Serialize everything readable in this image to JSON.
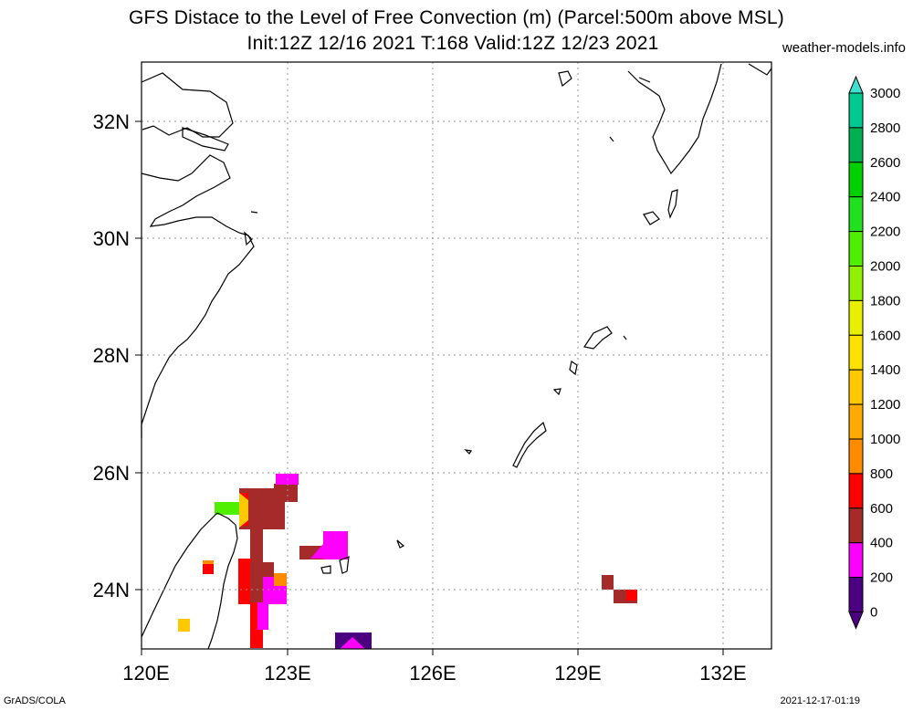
{
  "title_line1": "GFS Distace to the Level of Free Convection (m) (Parcel:500m above MSL)",
  "title_line2": "Init:12Z 12/16 2021 T:168 Valid:12Z 12/23 2021",
  "site": "weather-models.info",
  "footer_left": "GrADS/COLA",
  "footer_right": "2021-12-17-01:19",
  "lat_labels": [
    "32N",
    "30N",
    "28N",
    "26N",
    "24N"
  ],
  "lon_labels": [
    "120E",
    "123E",
    "126E",
    "129E",
    "132E"
  ],
  "colorbar": {
    "labels": [
      "3000",
      "2800",
      "2600",
      "2400",
      "2200",
      "2000",
      "1800",
      "1600",
      "1400",
      "1200",
      "1000",
      "800",
      "600",
      "400",
      "200",
      "0"
    ],
    "colors": [
      "#00e0d0",
      "#00c890",
      "#00b050",
      "#00d000",
      "#20e020",
      "#50ee00",
      "#90f000",
      "#e8f000",
      "#ffe000",
      "#ffc800",
      "#ffaa00",
      "#ff8c00",
      "#ff0000",
      "#a52a2a",
      "#ff00ff",
      "#4b0082"
    ],
    "top_arrow_color": "#40e0d0",
    "bottom_arrow_color": "#4b0082"
  }
}
